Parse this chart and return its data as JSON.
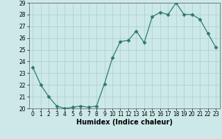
{
  "x": [
    0,
    1,
    2,
    3,
    4,
    5,
    6,
    7,
    8,
    9,
    10,
    11,
    12,
    13,
    14,
    15,
    16,
    17,
    18,
    19,
    20,
    21,
    22,
    23
  ],
  "y": [
    23.5,
    22.0,
    21.0,
    20.2,
    20.0,
    20.1,
    20.2,
    20.1,
    20.2,
    22.1,
    24.3,
    25.7,
    25.8,
    26.6,
    25.6,
    27.8,
    28.2,
    28.0,
    29.0,
    28.0,
    28.0,
    27.6,
    26.4,
    25.2
  ],
  "line_color": "#2d7a6a",
  "marker": "D",
  "marker_size": 2.5,
  "bg_color": "#cce8e8",
  "grid_color": "#aacece",
  "xlabel": "Humidex (Indice chaleur)",
  "ylim": [
    20,
    29
  ],
  "xlim": [
    -0.5,
    23.5
  ],
  "yticks": [
    20,
    21,
    22,
    23,
    24,
    25,
    26,
    27,
    28,
    29
  ],
  "xticks": [
    0,
    1,
    2,
    3,
    4,
    5,
    6,
    7,
    8,
    9,
    10,
    11,
    12,
    13,
    14,
    15,
    16,
    17,
    18,
    19,
    20,
    21,
    22,
    23
  ],
  "tick_fontsize": 5.5,
  "label_fontsize": 7
}
